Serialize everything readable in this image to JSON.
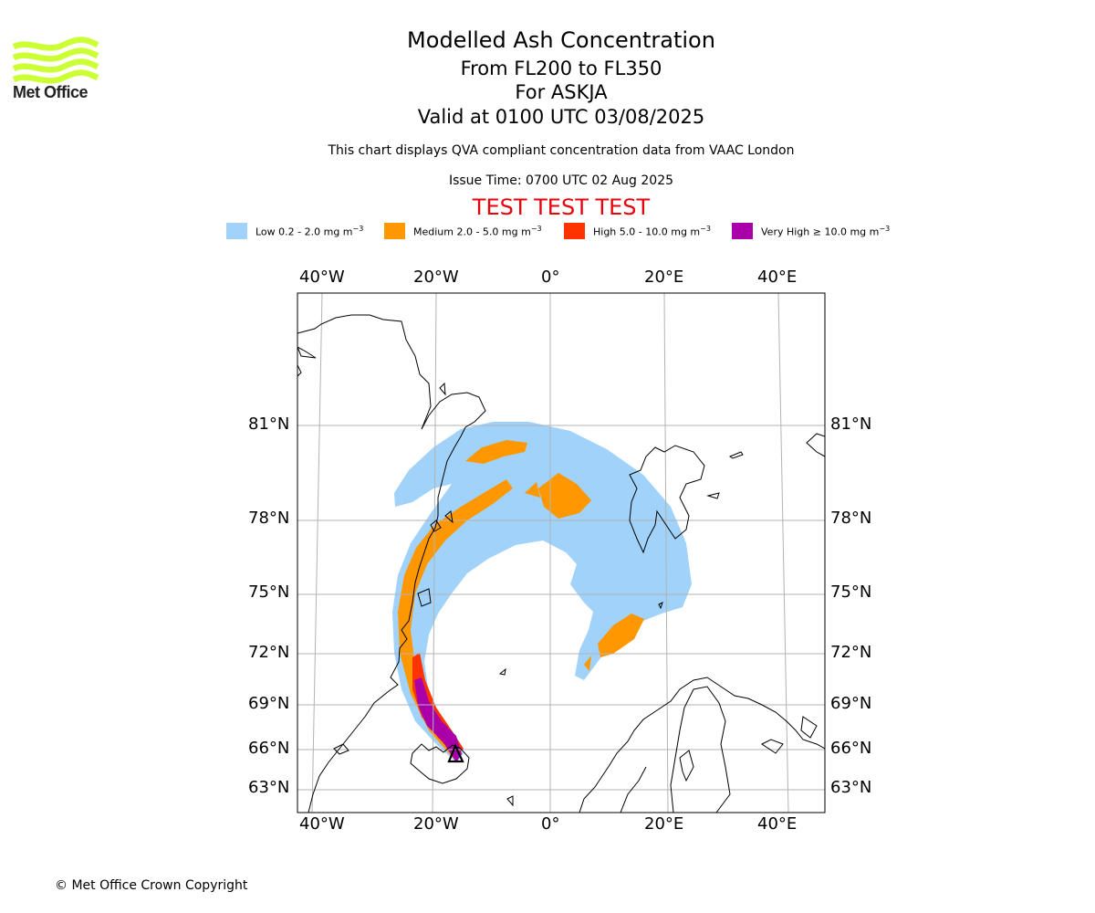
{
  "header": {
    "title": "Modelled Ash Concentration",
    "levels": "From FL200 to FL350",
    "volcano": "For ASKJA",
    "valid": "Valid at 0100 UTC 03/08/2025",
    "description": "This chart displays QVA compliant concentration data from VAAC London",
    "issue_time": "Issue Time: 0700 UTC 02 Aug 2025",
    "banner": "TEST TEST TEST"
  },
  "logo": {
    "text": "Met Office",
    "color": "#ccff33"
  },
  "legend": [
    {
      "label": "Low 0.2 - 2.0 mg m",
      "color": "#a0d2fa"
    },
    {
      "label": "Medium 2.0 - 5.0 mg m",
      "color": "#ff9800"
    },
    {
      "label": "High 5.0 - 10.0 mg m",
      "color": "#ff3300"
    },
    {
      "label": "Very High ≥ 10.0 mg m",
      "color": "#aa00aa"
    }
  ],
  "legend_unit_exp": "−3",
  "map": {
    "lon_labels": [
      "40°W",
      "20°W",
      "0°",
      "20°E",
      "40°E"
    ],
    "lat_labels": [
      "81°N",
      "78°N",
      "75°N",
      "72°N",
      "69°N",
      "66°N",
      "63°N"
    ],
    "grid": true,
    "volcano_marker": "black triangle"
  },
  "footer": {
    "copyright": "© Met Office Crown Copyright"
  }
}
